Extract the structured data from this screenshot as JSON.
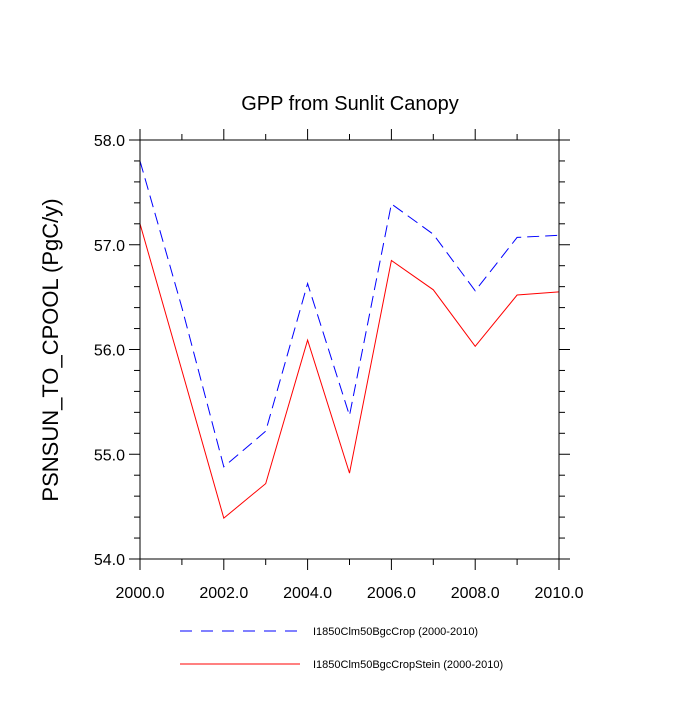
{
  "chart_data": {
    "type": "line",
    "title": "GPP from Sunlit Canopy",
    "xlabel": "",
    "ylabel": "PSNSUN_TO_CPOOL  (PgC/y)",
    "xlim": [
      2000,
      2010
    ],
    "ylim": [
      54.0,
      58.0
    ],
    "x_ticks": [
      2000,
      2002,
      2004,
      2006,
      2008,
      2010
    ],
    "x_tick_labels": [
      "2000.0",
      "2002.0",
      "2004.0",
      "2006.0",
      "2008.0",
      "2010.0"
    ],
    "y_ticks": [
      54,
      55,
      56,
      57,
      58
    ],
    "y_tick_labels": [
      "54.0",
      "55.0",
      "56.0",
      "57.0",
      "58.0"
    ],
    "grid": false,
    "legend_position": "bottom",
    "x": [
      2000,
      2001,
      2002,
      2003,
      2004,
      2005,
      2006,
      2007,
      2008,
      2009,
      2010
    ],
    "series": [
      {
        "name": "I1850Clm50BgcCrop (2000-2010)",
        "color": "#0000ff",
        "style": "dashed",
        "values": [
          57.8,
          56.4,
          54.88,
          55.22,
          56.63,
          55.37,
          57.39,
          57.1,
          56.56,
          57.07,
          57.09
        ]
      },
      {
        "name": "I1850Clm50BgcCropStein (2000-2010)",
        "color": "#ff0000",
        "style": "solid",
        "values": [
          57.2,
          55.8,
          54.39,
          54.72,
          56.09,
          54.82,
          56.85,
          56.57,
          56.03,
          56.52,
          56.55
        ]
      }
    ]
  }
}
